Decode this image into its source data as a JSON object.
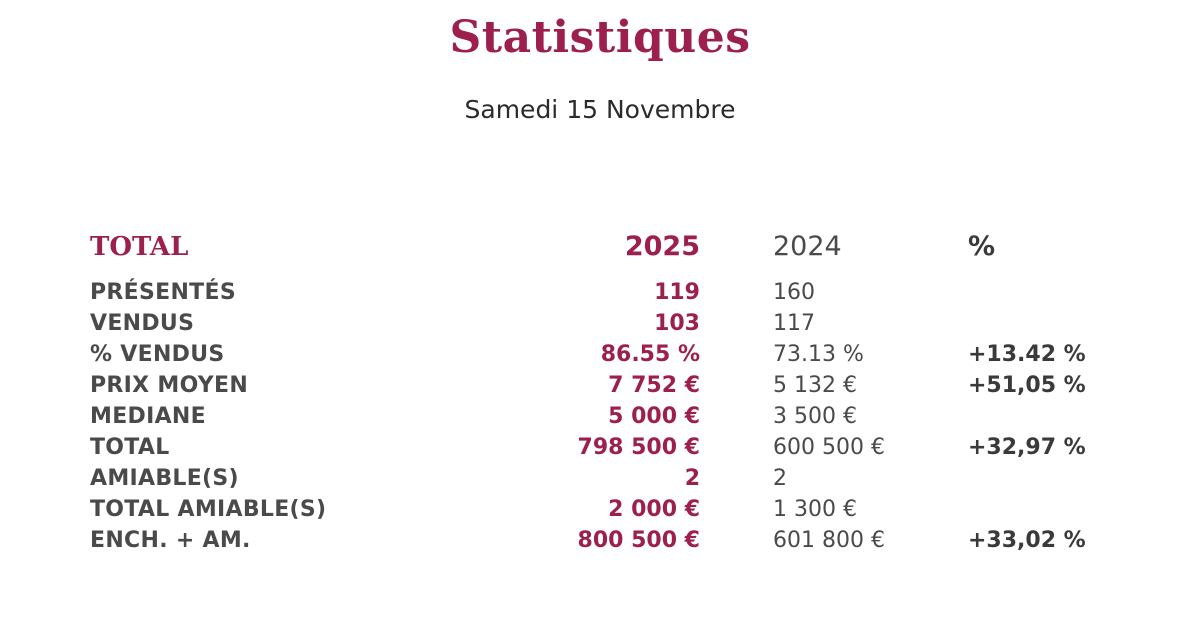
{
  "title": "Statistiques",
  "subtitle": "Samedi 15 Novembre",
  "table": {
    "header": {
      "label": "TOTAL",
      "col_2025": "2025",
      "col_2024": "2024",
      "col_pct": "%"
    },
    "rows": [
      {
        "label": "PRÉSENTÉS",
        "v2025": "119",
        "v2024": "160",
        "pct": ""
      },
      {
        "label": "VENDUS",
        "v2025": "103",
        "v2024": "117",
        "pct": ""
      },
      {
        "label": "% VENDUS",
        "v2025": "86.55 %",
        "v2024": "73.13 %",
        "pct": "+13.42 %"
      },
      {
        "label": "PRIX MOYEN",
        "v2025": "7 752 €",
        "v2024": "5 132 €",
        "pct": "+51,05 %"
      },
      {
        "label": "MEDIANE",
        "v2025": "5 000 €",
        "v2024": "3 500 €",
        "pct": ""
      },
      {
        "label": "TOTAL",
        "v2025": "798 500 €",
        "v2024": "600 500 €",
        "pct": "+32,97 %"
      },
      {
        "label": "AMIABLE(S)",
        "v2025": "2",
        "v2024": "2",
        "pct": ""
      },
      {
        "label": "TOTAL AMIABLE(S)",
        "v2025": "2 000 €",
        "v2024": "1 300 €",
        "pct": ""
      },
      {
        "label": "ENCH. + AM.",
        "v2025": "800 500 €",
        "v2024": "601 800 €",
        "pct": "+33,02 %"
      }
    ]
  },
  "colors": {
    "accent": "#9d1f4d",
    "text": "#4a4a4a"
  }
}
